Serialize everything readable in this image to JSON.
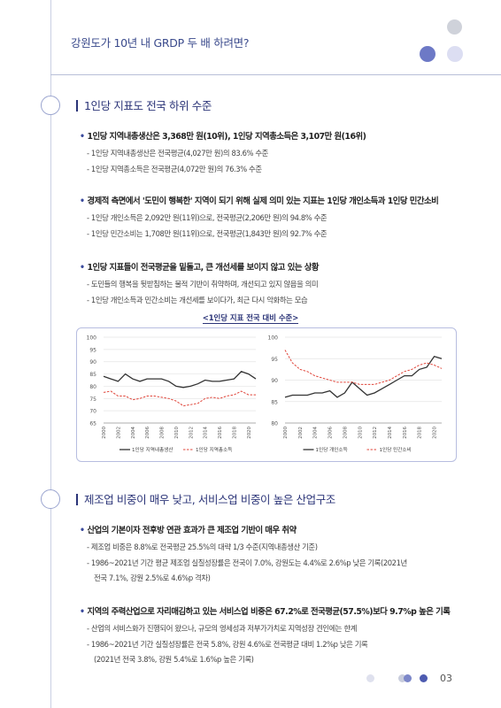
{
  "header": {
    "title": "강원도가 10년 내 GRDP 두 배 하려면?"
  },
  "section1": {
    "title": "1인당 지표도 전국 하위 수준",
    "bullets": [
      {
        "text": "1인당 지역내총생산은 3,368만 원(10위), 1인당 지역총소득은 3,107만 원(16위)",
        "subs": [
          "1인당 지역내총생산은 전국평균(4,027만 원)의 83.6% 수준",
          "1인당 지역총소득은 전국평균(4,072만 원)의 76.3% 수준"
        ]
      },
      {
        "text": "경제적 측면에서 '도민이 행복한' 지역이 되기 위해 실제 의미 있는 지표는 1인당 개인소득과 1인당 민간소비",
        "subs": [
          "1인당 개인소득은 2,092만 원(11위)으로, 전국평균(2,206만 원)의 94.8% 수준",
          "1인당 민간소비는 1,708만 원(11위)으로, 전국평균(1,843만 원)의 92.7% 수준"
        ]
      },
      {
        "text": "1인당 지표들이 전국평균을 밑돌고, 큰 개선세를 보이지 않고 있는 상황",
        "subs": [
          "도민들의 행복을 뒷받침하는 물적 기반이 취약하며, 개선되고 있지 않음을 의미",
          "1인당 개인소득과 민간소비는 개선세를 보이다가, 최근 다시 악화하는 모습"
        ]
      }
    ],
    "chart_caption": "<1인당 지표 전국 대비 수준>"
  },
  "chart_data": [
    {
      "type": "line",
      "x": [
        "2000",
        "2001",
        "2002",
        "2003",
        "2004",
        "2005",
        "2006",
        "2007",
        "2008",
        "2009",
        "2010",
        "2011",
        "2012",
        "2013",
        "2014",
        "2015",
        "2016",
        "2017",
        "2018",
        "2019",
        "2020",
        "2021"
      ],
      "x_ticks": [
        "2000",
        "2002",
        "2004",
        "2006",
        "2008",
        "2010",
        "2012",
        "2014",
        "2016",
        "2018",
        "2020"
      ],
      "yticks": [
        "100",
        "95",
        "90",
        "85",
        "80",
        "75",
        "70",
        "65"
      ],
      "ylim": [
        65,
        100
      ],
      "grid": true,
      "legend": "bottom",
      "series": [
        {
          "name": "1인당 지역내총생산",
          "color": "#333333",
          "dash": false,
          "values": [
            84,
            83,
            82,
            85,
            83,
            82,
            83,
            83,
            83,
            82,
            80,
            79.5,
            80,
            81,
            82.5,
            82,
            82,
            82.5,
            83,
            86,
            85,
            83
          ]
        },
        {
          "name": "1인당 지역총소득",
          "color": "#e0453a",
          "dash": true,
          "values": [
            77.5,
            78,
            76,
            76,
            74.5,
            75,
            76,
            76,
            75.5,
            75,
            74,
            72,
            72.5,
            73,
            75,
            75.5,
            75,
            76,
            76.5,
            78,
            76.5,
            76.5
          ]
        }
      ]
    },
    {
      "type": "line",
      "x": [
        "2000",
        "2001",
        "2002",
        "2003",
        "2004",
        "2005",
        "2006",
        "2007",
        "2008",
        "2009",
        "2010",
        "2011",
        "2012",
        "2013",
        "2014",
        "2015",
        "2016",
        "2017",
        "2018",
        "2019",
        "2020",
        "2021"
      ],
      "x_ticks": [
        "2000",
        "2002",
        "2004",
        "2006",
        "2008",
        "2010",
        "2012",
        "2014",
        "2016",
        "2018",
        "2020"
      ],
      "yticks": [
        "100",
        "95",
        "90",
        "85",
        "80"
      ],
      "ylim": [
        80,
        100
      ],
      "grid": true,
      "legend": "bottom",
      "series": [
        {
          "name": "1인당 개인소득",
          "color": "#333333",
          "dash": false,
          "values": [
            86,
            86.5,
            86.5,
            86.5,
            87,
            87,
            87.5,
            86,
            87,
            89.5,
            88,
            86.5,
            87,
            88,
            89,
            90,
            91,
            91,
            92.5,
            93,
            95.5,
            95
          ]
        },
        {
          "name": "1인당 민간소비",
          "color": "#e0453a",
          "dash": true,
          "values": [
            97,
            94,
            92.5,
            92,
            91,
            90.5,
            90,
            89.5,
            89.5,
            89.5,
            89,
            89,
            89,
            89.5,
            90,
            91,
            92,
            92.5,
            93.5,
            94,
            93.5,
            92.7
          ]
        }
      ]
    }
  ],
  "section2": {
    "title": "제조업 비중이 매우 낮고, 서비스업 비중이 높은 산업구조",
    "bullets": [
      {
        "text": "산업의 기본이자 전후방 연관 효과가 큰 제조업 기반이 매우 취약",
        "subs": [
          "제조업 비중은 8.8%로 전국평균 25.5%의 대략 1/3 수준(지역내총생산 기준)",
          "1986~2021년 기간 평균 제조업 실질성장률은 전국이 7.0%, 강원도는 4.4%로 2.6%p 낮은 기록(2021년",
          "전국 7.1%, 강원 2.5%로 4.6%p 격차)"
        ]
      },
      {
        "text": "지역의 주력산업으로 자리매김하고 있는 서비스업 비중은 67.2%로 전국평균(57.5%)보다 9.7%p 높은 기록",
        "subs": [
          "산업의 서비스화가 진행되어 왔으나, 규모의 영세성과 저부가가치로 지역성장 견인에는 한계",
          "1986~2021년 기간 실질성장률은 전국 5.8%, 강원 4.6%로 전국평균 대비 1.2%p 낮은 기록",
          "(2021년 전국 3.8%, 강원 5.4%로 1.6%p 높은 기록)"
        ]
      }
    ]
  },
  "footer": {
    "page_number": "03"
  }
}
